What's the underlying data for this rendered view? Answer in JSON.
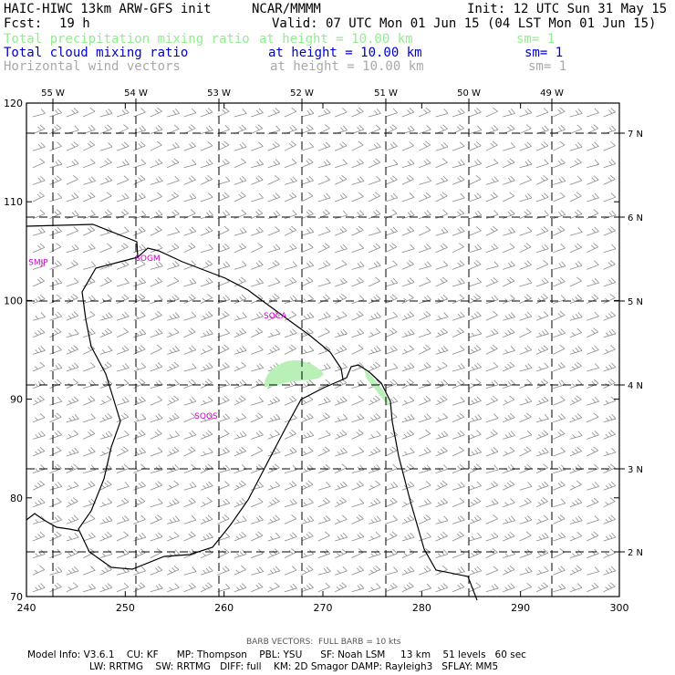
{
  "header": {
    "model": "HAIC-HIWC 13km ARW-GFS init",
    "org": "NCAR/MMMM",
    "init": "Init: 12 UTC Sun 31 May 15",
    "fcst_label": "Fcst:",
    "fcst_value": "19 h",
    "valid": "Valid: 07 UTC Mon 01 Jun 15 (04 LST Mon 01 Jun 15)"
  },
  "fields": [
    {
      "name": "Total precipitation mixing ratio",
      "height": "at height = 10.00 km",
      "sm": "sm= 1",
      "color": "#90ee90"
    },
    {
      "name": "Total cloud mixing ratio",
      "height": "at height = 10.00 km",
      "sm": "sm= 1",
      "color": "#0000cd"
    },
    {
      "name": "Horizontal wind vectors",
      "height": "at height = 10.00 km",
      "sm": "sm= 1",
      "color": "#a9a9a9"
    }
  ],
  "map": {
    "x_ticks": [
      "240",
      "250",
      "260",
      "270",
      "280",
      "290",
      "300"
    ],
    "y_ticks": [
      "70",
      "80",
      "90",
      "100",
      "110",
      "120"
    ],
    "lon_labels": [
      "55 W",
      "54 W",
      "53 W",
      "52 W",
      "51 W",
      "50 W",
      "49 W"
    ],
    "lat_labels": [
      "7 N",
      "6 N",
      "5 N",
      "4 N",
      "3 N",
      "2 N"
    ],
    "stations": [
      {
        "label": "SMJP",
        "x": 240.2,
        "y": 103.6
      },
      {
        "label": "SOGM",
        "x": 251.0,
        "y": 104.0
      },
      {
        "label": "SOCA",
        "x": 264.0,
        "y": 98.2
      },
      {
        "label": "SOOS",
        "x": 257.0,
        "y": 88.0
      }
    ],
    "colors": {
      "station": "#cc00cc",
      "precip": "#b8f0b8",
      "barb": "#8c8c8c",
      "grid": "#000000"
    }
  },
  "footer": {
    "barb": "BARB VECTORS:  FULL BARB = 10 kts",
    "line1": "Model Info: V3.6.1    CU: KF      MP: Thompson    PBL: YSU      SF: Noah LSM     13 km    51 levels   60 sec",
    "line2": "LW: RRTMG    SW: RRTMG   DIFF: full    KM: 2D Smagor DAMP: Rayleigh3   SFLAY: MM5"
  }
}
